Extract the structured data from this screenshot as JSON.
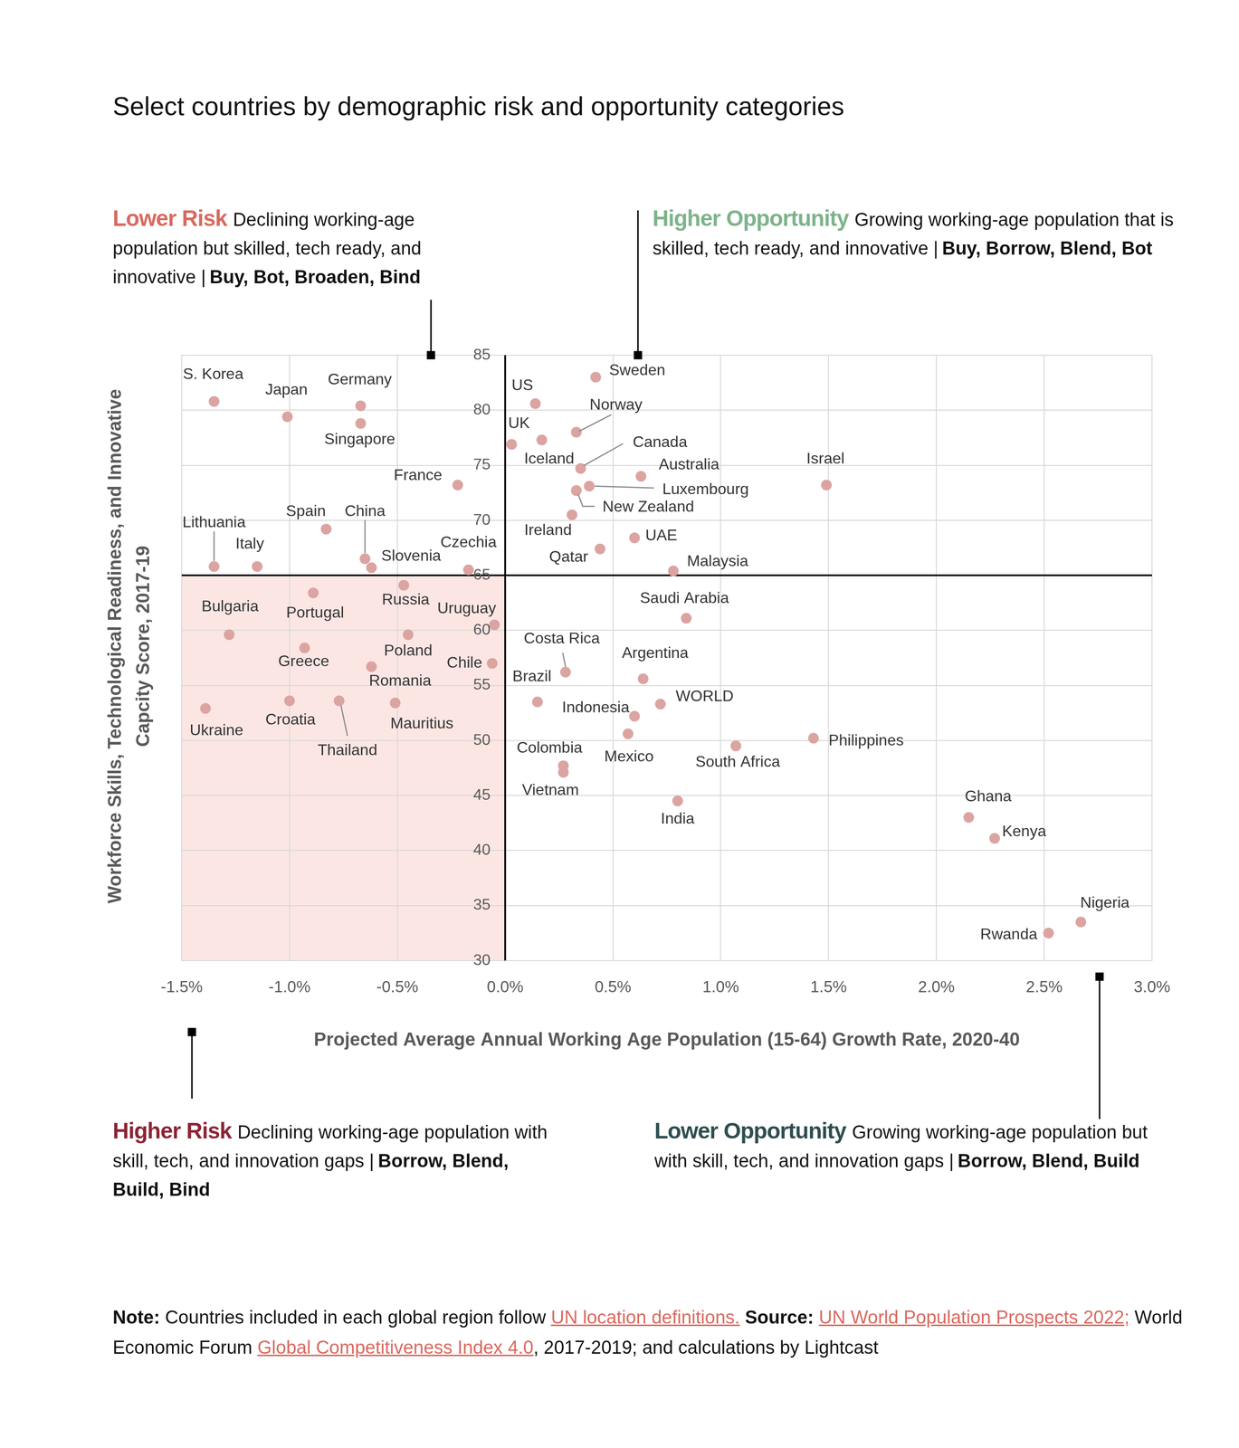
{
  "chart_data": {
    "type": "scatter",
    "title": "Select countries by demographic risk and opportunity categories",
    "x_label": "Projected Average Annual Working Age Population (15-64) Growth Rate, 2020-40",
    "y_label": [
      "Workforce Skills, Technological Readiness, and Innovative",
      "Capcity Score, 2017-19"
    ],
    "labels": [
      "S. Korea",
      "Japan",
      "Germany",
      "Singapore",
      "France",
      "Spain",
      "China",
      "Slovenia",
      "Lithuania",
      "Italy",
      "Czechia",
      "US",
      "Sweden",
      "UK",
      "Iceland",
      "Norway",
      "Canada",
      "Australia",
      "Luxembourg",
      "New Zealand",
      "Ireland",
      "Israel",
      "Qatar",
      "UAE",
      "Malaysia",
      "Russia",
      "Portugal",
      "Bulgaria",
      "Poland",
      "Uruguay",
      "Greece",
      "Romania",
      "Chile",
      "Ukraine",
      "Croatia",
      "Thailand",
      "Mauritius",
      "Saudi Arabia",
      "Costa Rica",
      "Argentina",
      "Brazil",
      "WORLD",
      "Indonesia",
      "Mexico",
      "South Africa",
      "Philippines",
      "Colombia",
      "Vietnam",
      "India",
      "Ghana",
      "Kenya",
      "Nigeria",
      "Rwanda"
    ],
    "x": [
      -1.35,
      -1.01,
      -0.67,
      -0.67,
      -0.22,
      -0.83,
      -0.65,
      -0.62,
      -1.35,
      -1.15,
      -0.17,
      0.14,
      0.42,
      0.03,
      0.17,
      0.33,
      0.35,
      0.63,
      0.39,
      0.33,
      0.31,
      1.49,
      0.44,
      0.6,
      0.78,
      -0.47,
      -0.89,
      -1.28,
      -0.45,
      -0.05,
      -0.93,
      -0.62,
      -0.06,
      -1.39,
      -1.0,
      -0.77,
      -0.51,
      0.84,
      0.28,
      0.64,
      0.15,
      0.72,
      0.6,
      0.57,
      1.07,
      1.43,
      0.27,
      0.27,
      0.8,
      2.15,
      2.27,
      2.67,
      2.52
    ],
    "values": [
      80.8,
      79.4,
      80.4,
      78.8,
      73.2,
      69.2,
      66.5,
      65.7,
      65.8,
      65.8,
      65.5,
      80.6,
      83.0,
      76.9,
      77.3,
      78.0,
      74.7,
      74.0,
      73.1,
      72.7,
      70.5,
      73.2,
      67.4,
      68.4,
      65.4,
      64.1,
      63.4,
      59.6,
      59.6,
      60.5,
      58.4,
      56.7,
      57.0,
      52.9,
      53.6,
      53.6,
      53.4,
      61.1,
      56.2,
      55.6,
      53.5,
      53.3,
      52.2,
      50.6,
      49.5,
      50.2,
      47.7,
      47.1,
      44.5,
      43.0,
      41.1,
      33.5,
      32.5
    ],
    "color": "#dba4a1",
    "marker": "circle",
    "xlim": [
      -1.5,
      3.0
    ],
    "xticks": [
      {
        "value": -1.5,
        "label": "-1.5%"
      },
      {
        "value": -1.0,
        "label": "-1.0%"
      },
      {
        "value": -0.5,
        "label": "-0.5%"
      },
      {
        "value": 0.0,
        "label": "0.0%"
      },
      {
        "value": 0.5,
        "label": "0.5%"
      },
      {
        "value": 1.0,
        "label": "1.0%"
      },
      {
        "value": 1.5,
        "label": "1.5%"
      },
      {
        "value": 2.0,
        "label": "2.0%"
      },
      {
        "value": 2.5,
        "label": "2.5%"
      },
      {
        "value": 3.0,
        "label": "3.0%"
      }
    ],
    "ylim": [
      30,
      85
    ],
    "yticks": [
      30,
      35,
      40,
      45,
      50,
      55,
      60,
      65,
      70,
      75,
      80,
      85
    ],
    "grid": true,
    "dividers": {
      "x": 0,
      "y": 65
    },
    "quadrants": [
      {
        "title": "Lower Risk",
        "color": "#d9695f",
        "text": "Declining working-age population but skilled, tech ready, and innovative |",
        "strategies": "Buy, Bot, Broaden, Bind"
      },
      {
        "title": "Higher Opportunity",
        "color": "#7db38a",
        "text": "Growing working-age population that is skilled, tech ready, and innovative |",
        "strategies": "Buy, Borrow, Blend, Bot"
      },
      {
        "title": "Higher Risk",
        "color": "#8c2434",
        "text": "Declining working-age population with skill, tech, and innovation gaps |",
        "strategies": "Borrow, Blend, Build, Bind"
      },
      {
        "title": "Lower Opportunity",
        "color": "#2e4d4f",
        "text": "Growing working-age population but with skill, tech, and innovation gaps |",
        "strategies": "Borrow, Blend, Build"
      }
    ],
    "note": [
      {
        "text": "Note:",
        "style": "bold"
      },
      {
        "text": " Countries included in each global region follow ",
        "style": "plain"
      },
      {
        "text": "UN location definitions.",
        "style": "link"
      },
      {
        "text": " Source: ",
        "style": "bold"
      },
      {
        "text": "UN World Population Prospects 2022;",
        "style": "link"
      },
      {
        "text": " World Economic Forum ",
        "style": "plain"
      },
      {
        "text": "Global Competitiveness Index 4.0",
        "style": "link"
      },
      {
        "text": ", 2017-2019; and calculations by Lightcast",
        "style": "plain"
      }
    ]
  }
}
